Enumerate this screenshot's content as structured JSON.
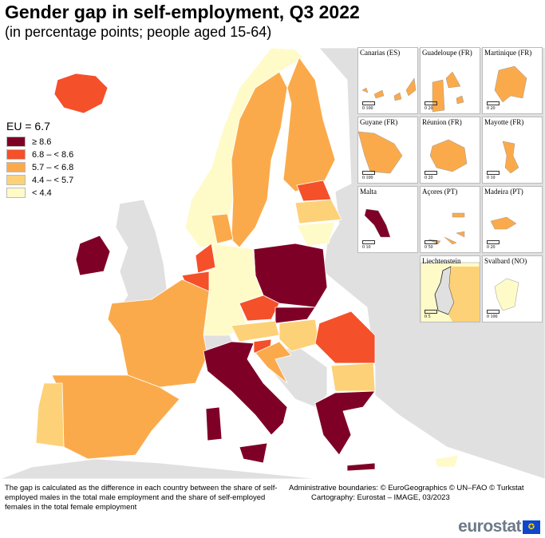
{
  "title": "Gender gap in self-employment, Q3 2022",
  "subtitle": "(in percentage points; people aged 15-64)",
  "legend": {
    "eu": "EU = 6.7",
    "classes": [
      {
        "label": "≥ 8.6",
        "color": "#7f0026"
      },
      {
        "label": "6.8 – < 8.6",
        "color": "#f4502a"
      },
      {
        "label": "5.7 – < 6.8",
        "color": "#fbaa4b"
      },
      {
        "label": "4.4 – < 5.7",
        "color": "#fdd177"
      },
      {
        "label": "< 4.4",
        "color": "#fefbc9"
      }
    ]
  },
  "colors": {
    "no_data": "#e0e0e0",
    "sea": "#ffffff"
  },
  "insets": [
    {
      "label": "Canarias (ES)",
      "scale": "0    100",
      "class": 3
    },
    {
      "label": "Guadeloupe (FR)",
      "scale": "0    20",
      "class": 3
    },
    {
      "label": "Martinique (FR)",
      "scale": "0    20",
      "class": 3
    },
    {
      "label": "Guyane (FR)",
      "scale": "0    100",
      "class": 3
    },
    {
      "label": "Réunion (FR)",
      "scale": "0    20",
      "class": 3
    },
    {
      "label": "Mayotte (FR)",
      "scale": "0    10",
      "class": 3
    },
    {
      "label": "Malta",
      "scale": "0    10",
      "class": 1
    },
    {
      "label": "Açores (PT)",
      "scale": "0    50",
      "class": 3
    },
    {
      "label": "Madeira (PT)",
      "scale": "0    20",
      "class": 3
    },
    {
      "label": "Liechtenstein",
      "scale": "0    5",
      "class": 5
    },
    {
      "label": "Svalbard (NO)",
      "scale": "0    100",
      "class": 5
    }
  ],
  "notes": "The gap is calculated as the difference in each country between the share of self-employed males in the total male employment and the share of self-employed females in the total female employment",
  "credits": {
    "boundaries": "Administrative boundaries: © EuroGeographics © UN–FAO © Turkstat",
    "cartography": "Cartography: Eurostat – IMAGE, 03/2023"
  },
  "logo": "eurostat"
}
